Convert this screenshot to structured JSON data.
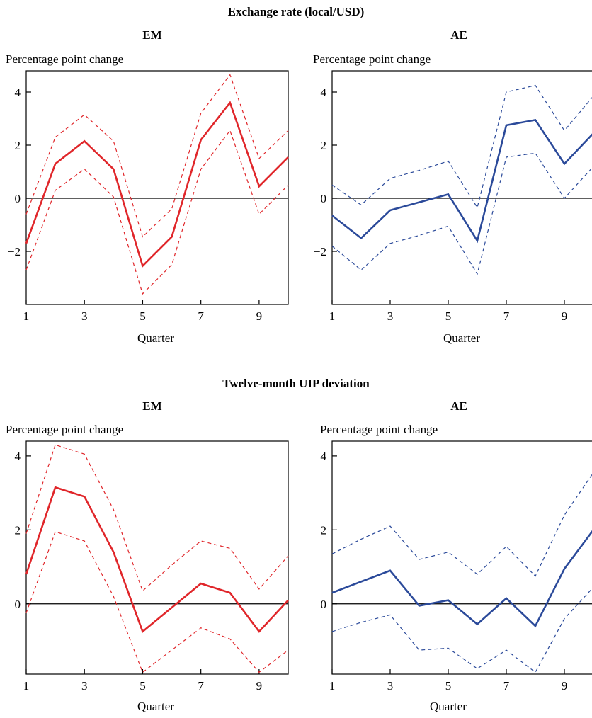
{
  "sections": [
    {
      "title": "Exchange rate (local/USD)",
      "panels": [
        {
          "title": "EM",
          "ylabel": "Percentage point change",
          "xlabel": "Quarter"
        },
        {
          "title": "AE",
          "ylabel": "Percentage point change",
          "xlabel": "Quarter"
        }
      ]
    },
    {
      "title": "Twelve-month UIP deviation",
      "panels": [
        {
          "title": "EM",
          "ylabel": "Percentage point change",
          "xlabel": "Quarter"
        },
        {
          "title": "AE",
          "ylabel": "Percentage point change",
          "xlabel": "Quarter"
        }
      ]
    }
  ],
  "colors": {
    "em": "#e0262a",
    "ae": "#2b4a9a",
    "zero_line": "#000000"
  },
  "chart_data": [
    {
      "type": "line",
      "title": "EM",
      "section": "Exchange rate (local/USD)",
      "ylabel": "Percentage point change",
      "xlabel": "Quarter",
      "x": [
        1,
        2,
        3,
        4,
        5,
        6,
        7,
        8,
        9,
        10
      ],
      "xlim": [
        1,
        10
      ],
      "ylim": [
        -4,
        4.8
      ],
      "xticks": [
        1,
        3,
        5,
        7,
        9
      ],
      "yticks": [
        -2,
        0,
        2,
        4
      ],
      "ytick_labels": [
        "−2",
        "0",
        "2",
        "4"
      ],
      "color": "em",
      "series": [
        {
          "values": [
            -1.7,
            1.3,
            2.15,
            1.1,
            -2.55,
            -1.45,
            2.2,
            3.6,
            0.45,
            1.55
          ]
        },
        {
          "style": "dashed",
          "values": [
            -0.6,
            2.3,
            3.15,
            2.15,
            -1.45,
            -0.4,
            3.2,
            4.65,
            1.5,
            2.55
          ]
        },
        {
          "style": "dashed",
          "values": [
            -2.7,
            0.3,
            1.1,
            0.05,
            -3.6,
            -2.5,
            1.1,
            2.55,
            -0.6,
            0.5
          ]
        }
      ]
    },
    {
      "type": "line",
      "title": "AE",
      "section": "Exchange rate (local/USD)",
      "ylabel": "Percentage point change",
      "xlabel": "Quarter",
      "x": [
        1,
        2,
        3,
        4,
        5,
        6,
        7,
        8,
        9,
        10
      ],
      "xlim": [
        1,
        10
      ],
      "ylim": [
        -4,
        4.8
      ],
      "xticks": [
        1,
        3,
        5,
        7,
        9
      ],
      "yticks": [
        -2,
        0,
        2,
        4
      ],
      "ytick_labels": [
        "−2",
        "0",
        "2",
        "4"
      ],
      "color": "ae",
      "series": [
        {
          "values": [
            -0.65,
            -1.5,
            -0.45,
            -0.15,
            0.15,
            -1.6,
            2.75,
            2.95,
            1.3,
            2.45
          ]
        },
        {
          "style": "dashed",
          "values": [
            0.5,
            -0.25,
            0.75,
            1.05,
            1.4,
            -0.35,
            4.0,
            4.25,
            2.55,
            3.85
          ]
        },
        {
          "style": "dashed",
          "values": [
            -1.8,
            -2.7,
            -1.7,
            -1.4,
            -1.05,
            -2.85,
            1.55,
            1.7,
            0.0,
            1.2
          ]
        }
      ]
    },
    {
      "type": "line",
      "title": "EM",
      "section": "Twelve-month UIP deviation",
      "ylabel": "Percentage point change",
      "xlabel": "Quarter",
      "x": [
        1,
        2,
        3,
        4,
        5,
        6,
        7,
        8,
        9,
        10
      ],
      "xlim": [
        1,
        10
      ],
      "ylim": [
        -1.9,
        4.4
      ],
      "xticks": [
        1,
        3,
        5,
        7,
        9
      ],
      "yticks": [
        0,
        2,
        4
      ],
      "ytick_labels": [
        "0",
        "2",
        "4"
      ],
      "color": "em",
      "series": [
        {
          "values": [
            0.8,
            3.15,
            2.9,
            1.4,
            -0.75,
            -0.1,
            0.55,
            0.3,
            -0.75,
            0.1
          ]
        },
        {
          "style": "dashed",
          "values": [
            1.9,
            4.3,
            4.05,
            2.55,
            0.35,
            1.05,
            1.7,
            1.5,
            0.4,
            1.3
          ]
        },
        {
          "style": "dashed",
          "values": [
            -0.25,
            1.95,
            1.7,
            0.2,
            -1.85,
            -1.25,
            -0.65,
            -0.95,
            -1.85,
            -1.25
          ]
        }
      ]
    },
    {
      "type": "line",
      "title": "AE",
      "section": "Twelve-month UIP deviation",
      "ylabel": "Percentage point change",
      "xlabel": "Quarter",
      "x": [
        1,
        2,
        3,
        4,
        5,
        6,
        7,
        8,
        9,
        10
      ],
      "xlim": [
        1,
        10
      ],
      "ylim": [
        -1.9,
        4.4
      ],
      "xticks": [
        1,
        3,
        5,
        7,
        9
      ],
      "yticks": [
        0,
        2,
        4
      ],
      "ytick_labels": [
        "0",
        "2",
        "4"
      ],
      "color": "ae",
      "series": [
        {
          "values": [
            0.3,
            0.6,
            0.9,
            -0.05,
            0.1,
            -0.55,
            0.15,
            -0.6,
            0.95,
            2.0
          ]
        },
        {
          "style": "dashed",
          "values": [
            1.35,
            1.75,
            2.1,
            1.2,
            1.4,
            0.8,
            1.55,
            0.75,
            2.4,
            3.55
          ]
        },
        {
          "style": "dashed",
          "values": [
            -0.75,
            -0.5,
            -0.3,
            -1.25,
            -1.2,
            -1.75,
            -1.25,
            -1.85,
            -0.4,
            0.45
          ]
        }
      ]
    }
  ]
}
